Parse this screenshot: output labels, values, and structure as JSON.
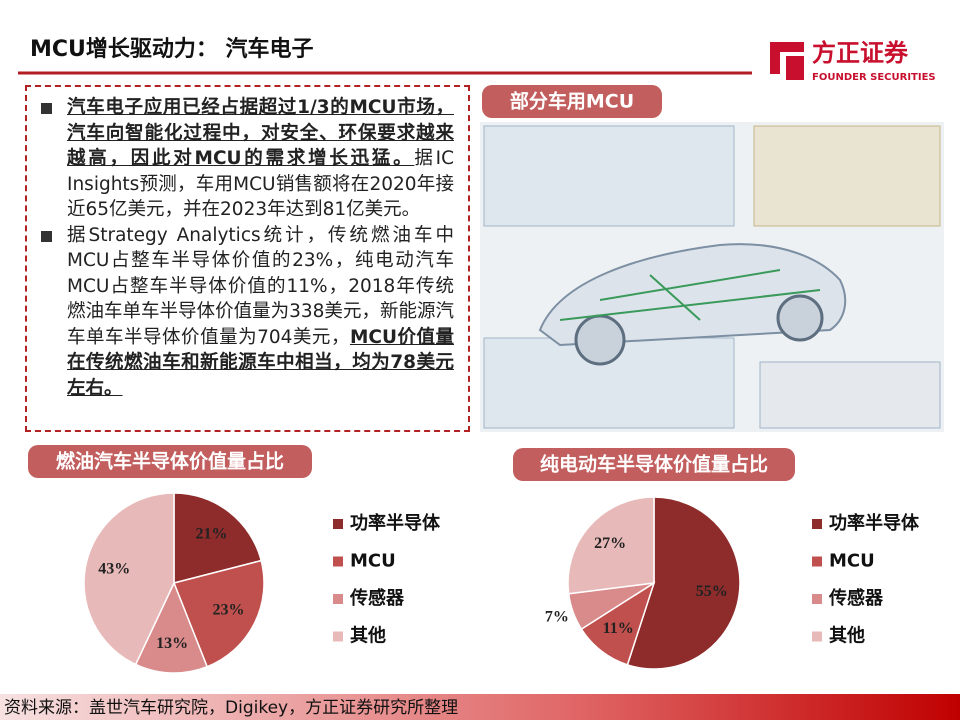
{
  "header": {
    "title": "MCU增长驱动力： 汽车电子",
    "logo_name": "方正证券",
    "logo_en": "FOUNDER SECURITIES"
  },
  "bullets": [
    {
      "runs": [
        {
          "text": "汽车电子应用已经占据超过1/3的MCU市场，汽车向智能化过程中，对安全、环保要求越来越高，因此对MCU的需求增长迅猛。",
          "bold": true
        },
        {
          "text": "据IC Insights预测，车用MCU销售额将在2020年接近65亿美元，并在2023年达到81亿美元。",
          "bold": false
        }
      ]
    },
    {
      "runs": [
        {
          "text": "据Strategy Analytics统计，传统燃油车中MCU占整车半导体价值的23%，纯电动汽车MCU占整车半导体价值的11%，2018年传统燃油车单车半导体价值量为338美元，新能源汽车单车半导体价值量为704美元，",
          "bold": false
        },
        {
          "text": "MCU价值量在传统燃油车和新能源车中相当，均为78美元左右。",
          "bold": true
        }
      ]
    }
  ],
  "image_title": "部分车用MCU",
  "chart_data": [
    {
      "type": "pie",
      "title": "燃油汽车半导体价值量占比",
      "categories": [
        "功率半导体",
        "MCU",
        "传感器",
        "其他"
      ],
      "values": [
        21,
        23,
        13,
        43
      ],
      "value_labels": [
        "21%",
        "23%",
        "13%",
        "43%"
      ],
      "colors": [
        "#8e2b2b",
        "#c0504d",
        "#d98a8a",
        "#e8b9b9"
      ]
    },
    {
      "type": "pie",
      "title": "纯电动车半导体价值量占比",
      "categories": [
        "功率半导体",
        "MCU",
        "传感器",
        "其他"
      ],
      "values": [
        55,
        11,
        7,
        27
      ],
      "value_labels": [
        "55%",
        "11%",
        "7%",
        "27%"
      ],
      "colors": [
        "#8e2b2b",
        "#c0504d",
        "#d98a8a",
        "#e8b9b9"
      ]
    }
  ],
  "footer": "资料来源：盖世汽车研究院，Digikey，方正证券研究所整理"
}
